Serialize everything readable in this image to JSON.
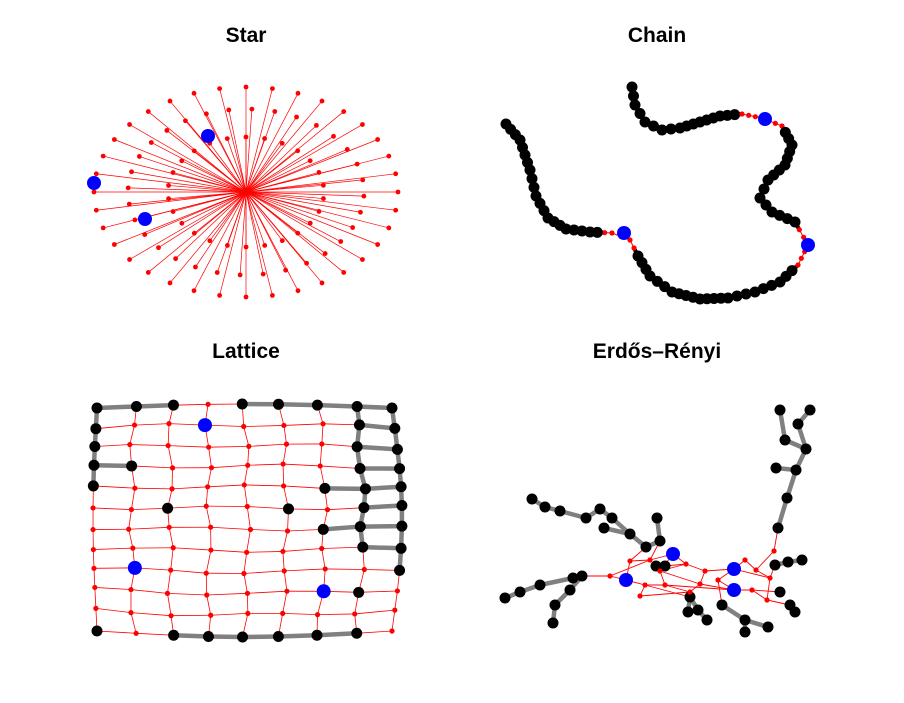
{
  "panels": [
    {
      "title": "Star"
    },
    {
      "title": "Chain"
    },
    {
      "title": "Lattice"
    },
    {
      "title": "Erdős–Rényi"
    }
  ],
  "colors": {
    "background": "#ffffff",
    "node_default": "#000000",
    "node_reached": "#ff0000",
    "node_source": "#0000ff",
    "edge_reached": "#ff0000",
    "edge_unreached": "#808080"
  }
}
